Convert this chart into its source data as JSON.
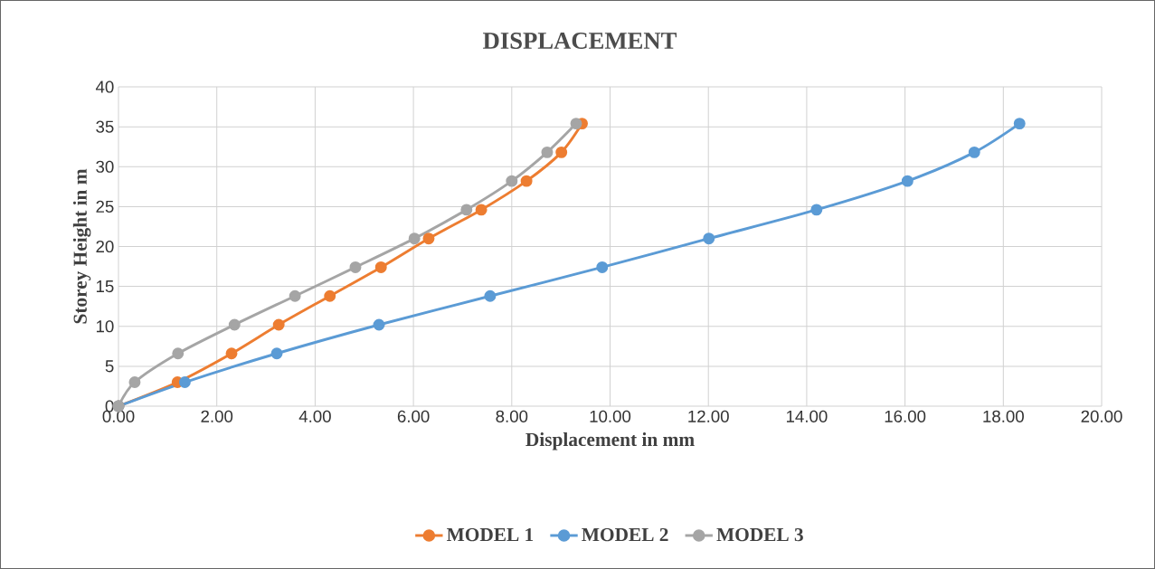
{
  "chart_data": {
    "type": "line",
    "title": "DISPLACEMENT",
    "xlabel": "Displacement in mm",
    "ylabel": "Storey Height in m",
    "xlim": [
      0,
      20
    ],
    "ylim": [
      0,
      40
    ],
    "xticks": [
      {
        "value": 0,
        "label": "0.00"
      },
      {
        "value": 2,
        "label": "2.00"
      },
      {
        "value": 4,
        "label": "4.00"
      },
      {
        "value": 6,
        "label": "6.00"
      },
      {
        "value": 8,
        "label": "8.00"
      },
      {
        "value": 10,
        "label": "10.00"
      },
      {
        "value": 12,
        "label": "12.00"
      },
      {
        "value": 14,
        "label": "14.00"
      },
      {
        "value": 16,
        "label": "16.00"
      },
      {
        "value": 18,
        "label": "18.00"
      },
      {
        "value": 20,
        "label": "20.00"
      }
    ],
    "yticks": [
      0,
      5,
      10,
      15,
      20,
      25,
      30,
      35,
      40
    ],
    "grid": true,
    "legend": "bottom",
    "marker": "circle",
    "line_style": "solid",
    "series": [
      {
        "name": "MODEL 1",
        "color": "#ed7d31",
        "x": [
          0,
          1.2,
          2.3,
          3.26,
          4.3,
          5.34,
          6.31,
          7.38,
          8.3,
          9.01,
          9.43
        ],
        "values": [
          0,
          3.0,
          6.6,
          10.2,
          13.8,
          17.4,
          21.0,
          24.6,
          28.2,
          31.8,
          35.4
        ]
      },
      {
        "name": "MODEL 2",
        "color": "#5b9bd5",
        "x": [
          0,
          1.35,
          3.22,
          5.3,
          7.56,
          9.84,
          12.01,
          14.2,
          16.05,
          17.41,
          18.33
        ],
        "values": [
          0,
          3.0,
          6.6,
          10.2,
          13.8,
          17.4,
          21.0,
          24.6,
          28.2,
          31.8,
          35.4
        ]
      },
      {
        "name": "MODEL 3",
        "color": "#a5a5a5",
        "x": [
          0,
          0.33,
          1.21,
          2.36,
          3.59,
          4.82,
          6.02,
          7.08,
          8.0,
          8.72,
          9.31
        ],
        "values": [
          0,
          3.0,
          6.6,
          10.2,
          13.8,
          17.4,
          21.0,
          24.6,
          28.2,
          31.8,
          35.4
        ]
      }
    ]
  }
}
